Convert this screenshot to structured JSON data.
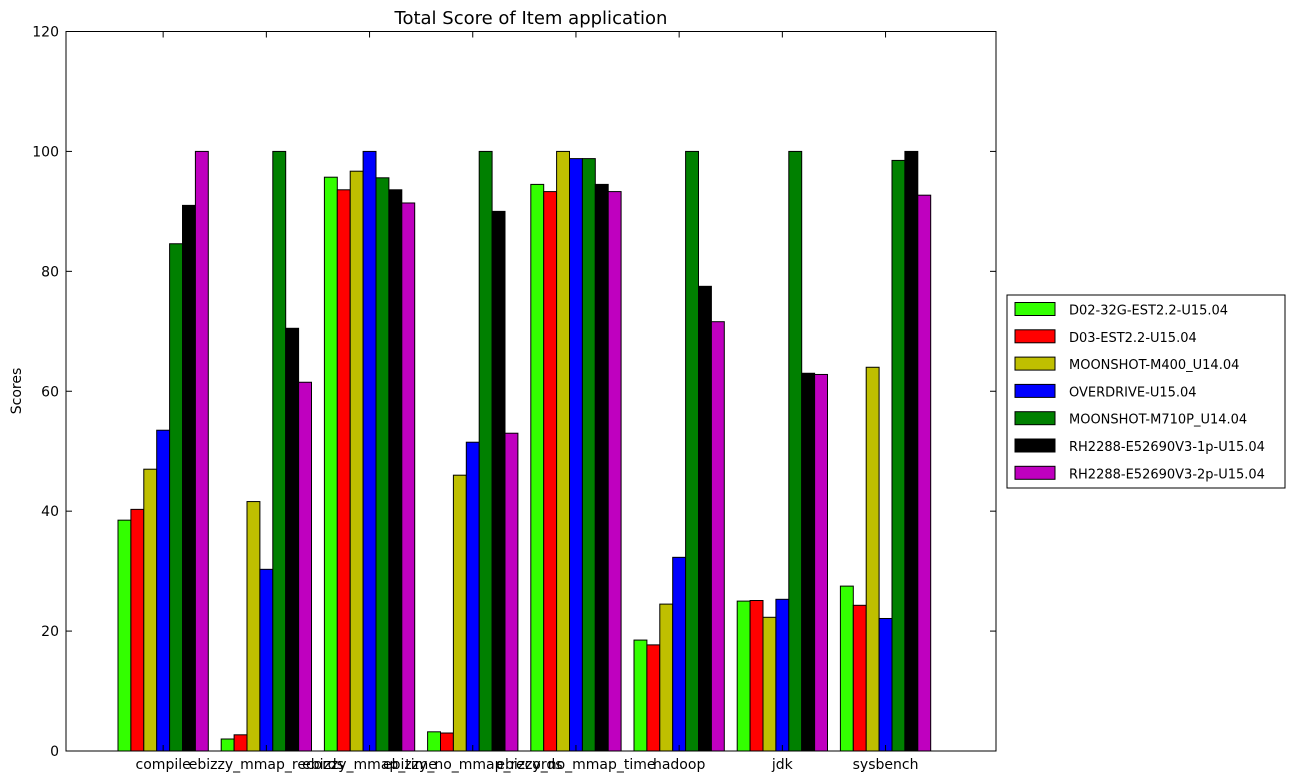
{
  "chart_data": {
    "type": "bar",
    "title": "Total Score of Item application",
    "xlabel": "",
    "ylabel": "Scores",
    "ylim": [
      0,
      120
    ],
    "yticks": [
      0,
      20,
      40,
      60,
      80,
      100,
      120
    ],
    "grid": false,
    "legend_position": "right",
    "categories": [
      "compile",
      "ebizzy_mmap_records",
      "ebizzy_mmap_time",
      "ebizzy_no_mmap_records",
      "ebizzy_no_mmap_time",
      "hadoop",
      "jdk",
      "sysbench"
    ],
    "series": [
      {
        "name": "D02-32G-EST2.2-U15.04",
        "color": "#33ff00",
        "values": [
          38.5,
          2.0,
          95.7,
          3.2,
          94.5,
          18.5,
          25.0,
          27.5
        ]
      },
      {
        "name": "D03-EST2.2-U15.04",
        "color": "#ff0000",
        "values": [
          40.3,
          2.7,
          93.6,
          3.0,
          93.3,
          17.7,
          25.1,
          24.3
        ]
      },
      {
        "name": "MOONSHOT-M400_U14.04",
        "color": "#bfbf00",
        "values": [
          47.0,
          41.6,
          96.7,
          46.0,
          100.0,
          24.5,
          22.3,
          64.0
        ]
      },
      {
        "name": "OVERDRIVE-U15.04",
        "color": "#0000ff",
        "values": [
          53.5,
          30.3,
          100.0,
          51.5,
          98.8,
          32.3,
          25.3,
          22.1
        ]
      },
      {
        "name": "MOONSHOT-M710P_U14.04",
        "color": "#008000",
        "values": [
          84.6,
          100.0,
          95.6,
          100.0,
          98.8,
          100.0,
          100.0,
          98.5
        ]
      },
      {
        "name": "RH2288-E52690V3-1p-U15.04",
        "color": "#000000",
        "values": [
          91.0,
          70.5,
          93.6,
          90.0,
          94.5,
          77.5,
          63.0,
          100.0
        ]
      },
      {
        "name": "RH2288-E52690V3-2p-U15.04",
        "color": "#bf00bf",
        "values": [
          100.0,
          61.5,
          91.4,
          53.0,
          93.3,
          71.6,
          62.8,
          92.7
        ]
      }
    ]
  }
}
